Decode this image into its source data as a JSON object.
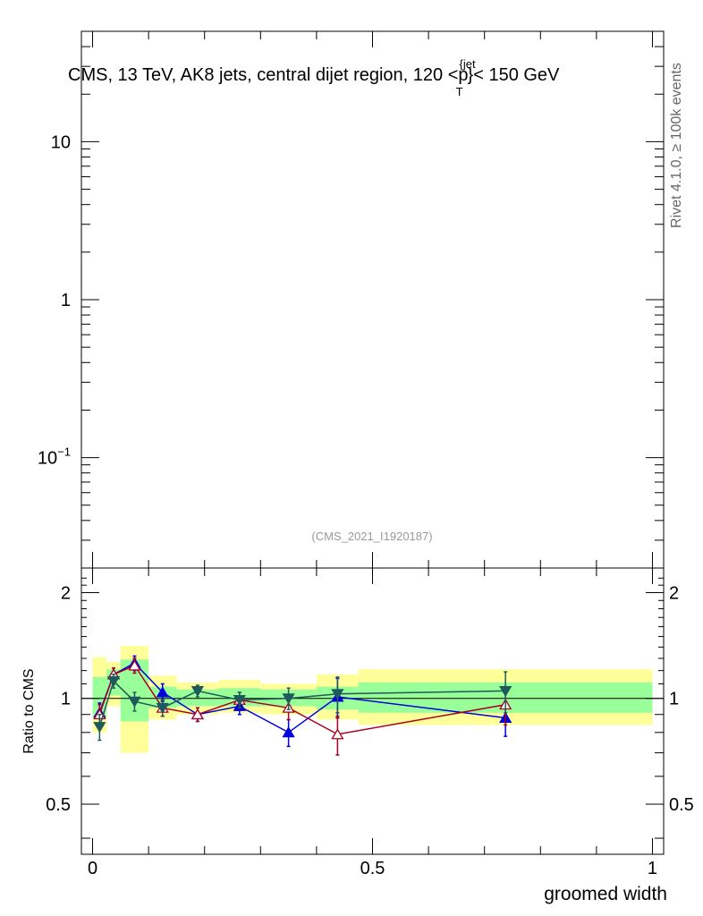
{
  "chart_data": [
    {
      "type": "line",
      "panel": "main",
      "title": "CMS, 13 TeV, AK8 jets, central dijet region, 120 <p",
      "title_sup": "{jet",
      "title_sub": "T",
      "title_suffix": "}< 150 GeV",
      "side_label": "Rivet 4.1.0, ≥ 100k events",
      "watermark": "(CMS_2021_I1920187)",
      "y_scale": "log",
      "ylim": [
        0.02,
        50
      ],
      "yticks": [
        {
          "value": 10,
          "label": "10"
        },
        {
          "value": 1,
          "label": "1"
        },
        {
          "value": 0.1,
          "label": "10",
          "sup": "−1"
        }
      ],
      "series": []
    },
    {
      "type": "line",
      "panel": "ratio",
      "ylabel": "Ratio to CMS",
      "xlabel": "groomed width",
      "xlim": [
        -0.02,
        1.02
      ],
      "ylim": [
        0.36,
        2.35
      ],
      "xticks": [
        {
          "value": 0,
          "label": "0"
        },
        {
          "value": 0.5,
          "label": "0.5"
        },
        {
          "value": 1,
          "label": "1"
        }
      ],
      "yticks": [
        {
          "value": 0.5,
          "label": "0.5"
        },
        {
          "value": 1,
          "label": "1"
        },
        {
          "value": 2,
          "label": "2"
        }
      ],
      "reference_line": 1,
      "bins": [
        {
          "lo": 0.0,
          "hi": 0.025,
          "inner": [
            0.88,
            1.15
          ],
          "outer": [
            0.8,
            1.31
          ]
        },
        {
          "lo": 0.025,
          "hi": 0.05,
          "inner": [
            1.02,
            1.21
          ],
          "outer": [
            0.95,
            1.27
          ]
        },
        {
          "lo": 0.05,
          "hi": 0.1,
          "inner": [
            0.86,
            1.29
          ],
          "outer": [
            0.7,
            1.41
          ]
        },
        {
          "lo": 0.1,
          "hi": 0.15,
          "inner": [
            0.94,
            1.08
          ],
          "outer": [
            0.87,
            1.16
          ]
        },
        {
          "lo": 0.15,
          "hi": 0.225,
          "inner": [
            0.95,
            1.06
          ],
          "outer": [
            0.9,
            1.11
          ]
        },
        {
          "lo": 0.225,
          "hi": 0.3,
          "inner": [
            0.95,
            1.07
          ],
          "outer": [
            0.91,
            1.13
          ]
        },
        {
          "lo": 0.3,
          "hi": 0.4,
          "inner": [
            0.95,
            1.06
          ],
          "outer": [
            0.9,
            1.1
          ]
        },
        {
          "lo": 0.4,
          "hi": 0.475,
          "inner": [
            0.93,
            1.08
          ],
          "outer": [
            0.87,
            1.17
          ]
        },
        {
          "lo": 0.475,
          "hi": 1.0,
          "inner": [
            0.91,
            1.11
          ],
          "outer": [
            0.84,
            1.21
          ]
        }
      ],
      "series": [
        {
          "color": "#0000dd",
          "marker": "triangle-up-filled",
          "x": [
            0.0125,
            0.0375,
            0.075,
            0.125,
            0.1875,
            0.2625,
            0.35,
            0.4375,
            0.7375
          ],
          "y": [
            0.91,
            1.17,
            1.26,
            1.04,
            0.9,
            0.95,
            0.8,
            1.01,
            0.88
          ],
          "err": [
            0.06,
            0.05,
            0.06,
            0.06,
            0.04,
            0.05,
            0.07,
            0.13,
            0.1
          ]
        },
        {
          "color": "#aa0022",
          "marker": "triangle-up-open",
          "x": [
            0.0125,
            0.0375,
            0.075,
            0.125,
            0.1875,
            0.2625,
            0.35,
            0.4375,
            0.7375
          ],
          "y": [
            0.9,
            1.17,
            1.24,
            0.94,
            0.9,
            0.99,
            0.94,
            0.79,
            0.96
          ],
          "err": [
            0.06,
            0.05,
            0.06,
            0.05,
            0.04,
            0.05,
            0.07,
            0.1,
            0.12
          ]
        },
        {
          "color": "#1f5a5a",
          "marker": "triangle-down-filled",
          "x": [
            0.0125,
            0.0375,
            0.075,
            0.125,
            0.1875,
            0.2625,
            0.35,
            0.4375,
            0.7375
          ],
          "y": [
            0.83,
            1.12,
            0.98,
            0.94,
            1.05,
            0.99,
            1.0,
            1.03,
            1.05
          ],
          "err": [
            0.07,
            0.05,
            0.06,
            0.05,
            0.04,
            0.05,
            0.07,
            0.12,
            0.14
          ]
        }
      ]
    }
  ]
}
